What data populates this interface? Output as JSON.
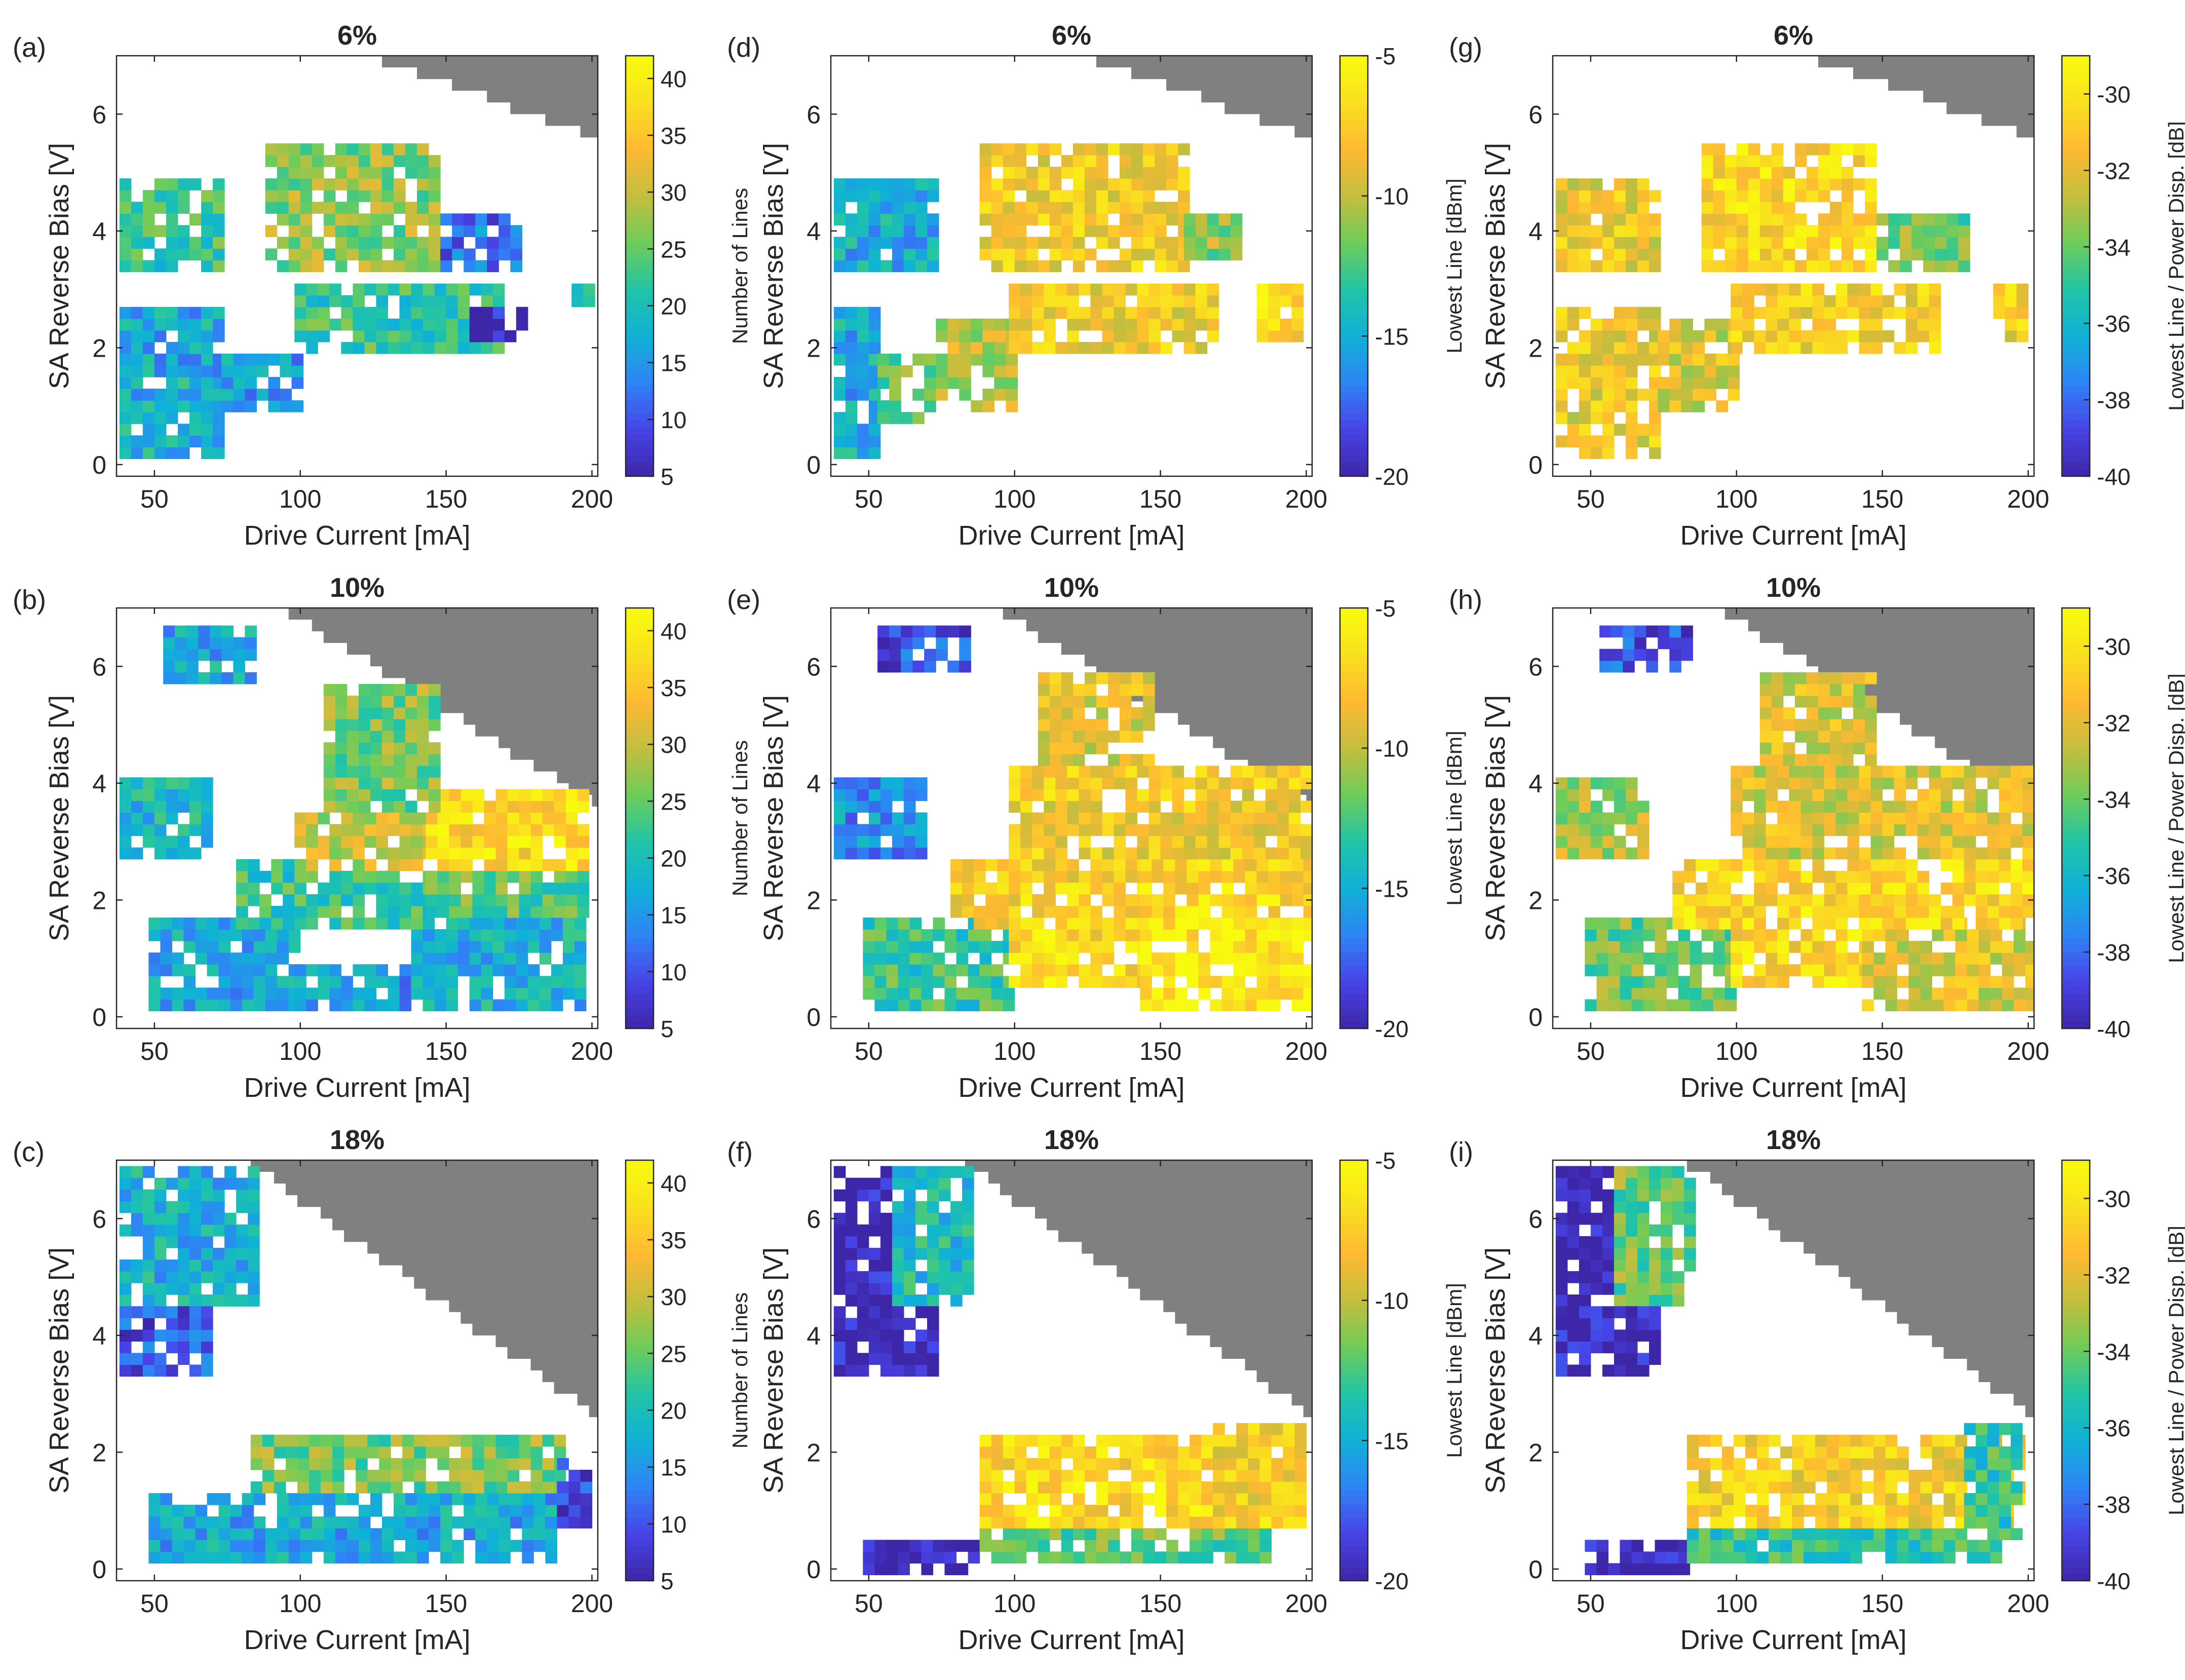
{
  "figure": {
    "xlabel": "Drive Current [mA]",
    "ylabel": "SA Reverse Bias [V]",
    "x_ticks": [
      50,
      100,
      150,
      200
    ],
    "y_ticks": [
      0,
      2,
      4,
      6
    ],
    "xlim": [
      37,
      202
    ],
    "ylim": [
      -0.2,
      7
    ]
  },
  "colormap": [
    "#3e26a8",
    "#4743e6",
    "#2f84f5",
    "#10b1d7",
    "#21c4a6",
    "#6ecc5a",
    "#c3be3e",
    "#feb932",
    "#f9e01f",
    "#f9fb0e"
  ],
  "missing_color": "#808080",
  "columns": [
    {
      "colorbar": {
        "label": "Number of Lines",
        "ticks": [
          5,
          10,
          15,
          20,
          25,
          30,
          35,
          40
        ],
        "range": [
          5,
          42
        ]
      }
    },
    {
      "colorbar": {
        "label": "Lowest Line [dBm]",
        "ticks": [
          -5,
          -10,
          -15,
          -20
        ],
        "range": [
          -20,
          -5
        ]
      }
    },
    {
      "colorbar": {
        "label": "Lowest Line / Power Disp. [dB]",
        "ticks": [
          -30,
          -32,
          -34,
          -36,
          -38,
          -40
        ],
        "range": [
          -40,
          -29
        ]
      }
    }
  ],
  "panels": [
    {
      "letter": "(a)",
      "title": "6%"
    },
    {
      "letter": "(d)",
      "title": "6%"
    },
    {
      "letter": "(g)",
      "title": "6%"
    },
    {
      "letter": "(b)",
      "title": "10%"
    },
    {
      "letter": "(e)",
      "title": "10%"
    },
    {
      "letter": "(h)",
      "title": "10%"
    },
    {
      "letter": "(c)",
      "title": "18%"
    },
    {
      "letter": "(f)",
      "title": "18%"
    },
    {
      "letter": "(i)",
      "title": "18%"
    }
  ],
  "chart_data": [
    {
      "type": "heatmap",
      "panel": "(a)",
      "title": "6%",
      "xlabel": "Drive Current [mA]",
      "ylabel": "SA Reverse Bias [V]",
      "colorbar_label": "Number of Lines",
      "value_range": [
        5,
        42
      ],
      "x_cells": [
        40,
        200,
        4
      ],
      "y_cells": [
        0,
        7,
        0.2
      ],
      "blocks": [
        {
          "x": [
            40,
            75
          ],
          "y": [
            0.2,
            1.6
          ],
          "v": 18
        },
        {
          "x": [
            40,
            75
          ],
          "y": [
            1.6,
            2.8
          ],
          "v": 17
        },
        {
          "x": [
            75,
            100
          ],
          "y": [
            1.0,
            2.0
          ],
          "v": 16
        },
        {
          "x": [
            100,
            170
          ],
          "y": [
            2.0,
            3.2
          ],
          "v": 22
        },
        {
          "x": [
            40,
            75
          ],
          "y": [
            3.4,
            5.0
          ],
          "v": 22
        },
        {
          "x": [
            90,
            150
          ],
          "y": [
            3.4,
            5.6
          ],
          "v": 27
        },
        {
          "x": [
            150,
            175
          ],
          "y": [
            3.4,
            4.4
          ],
          "v": 12
        },
        {
          "x": [
            160,
            180
          ],
          "y": [
            2.2,
            2.8
          ],
          "v": 6
        },
        {
          "x": [
            195,
            200
          ],
          "y": [
            2.8,
            3.2
          ],
          "v": 20
        }
      ]
    },
    {
      "type": "heatmap",
      "panel": "(d)",
      "title": "6%",
      "xlabel": "Drive Current [mA]",
      "ylabel": "SA Reverse Bias [V]",
      "colorbar_label": "Lowest Line [dBm]",
      "value_range": [
        -20,
        -5
      ],
      "x_cells": [
        40,
        200,
        4
      ],
      "y_cells": [
        0,
        7,
        0.2
      ],
      "blocks": [
        {
          "x": [
            40,
            55
          ],
          "y": [
            0.2,
            2.8
          ],
          "v": -15
        },
        {
          "x": [
            55,
            75
          ],
          "y": [
            0.8,
            2.0
          ],
          "v": -12
        },
        {
          "x": [
            75,
            100
          ],
          "y": [
            1.0,
            2.6
          ],
          "v": -10
        },
        {
          "x": [
            100,
            170
          ],
          "y": [
            2.0,
            3.2
          ],
          "v": -8
        },
        {
          "x": [
            40,
            75
          ],
          "y": [
            3.4,
            5.0
          ],
          "v": -15
        },
        {
          "x": [
            90,
            160
          ],
          "y": [
            3.4,
            5.6
          ],
          "v": -8
        },
        {
          "x": [
            160,
            180
          ],
          "y": [
            3.6,
            4.4
          ],
          "v": -11
        },
        {
          "x": [
            185,
            200
          ],
          "y": [
            2.2,
            3.2
          ],
          "v": -7
        }
      ]
    },
    {
      "type": "heatmap",
      "panel": "(g)",
      "title": "6%",
      "xlabel": "Drive Current [mA]",
      "ylabel": "SA Reverse Bias [V]",
      "colorbar_label": "Lowest Line / Power Disp. [dB]",
      "value_range": [
        -40,
        -29
      ],
      "x_cells": [
        40,
        200,
        4
      ],
      "y_cells": [
        0,
        7,
        0.2
      ],
      "blocks": [
        {
          "x": [
            40,
            75
          ],
          "y": [
            0.2,
            2.8
          ],
          "v": -31.5
        },
        {
          "x": [
            75,
            100
          ],
          "y": [
            1.0,
            2.6
          ],
          "v": -32
        },
        {
          "x": [
            100,
            170
          ],
          "y": [
            2.0,
            3.2
          ],
          "v": -31
        },
        {
          "x": [
            40,
            75
          ],
          "y": [
            3.4,
            5.0
          ],
          "v": -31.5
        },
        {
          "x": [
            90,
            150
          ],
          "y": [
            3.4,
            5.6
          ],
          "v": -30.5
        },
        {
          "x": [
            150,
            180
          ],
          "y": [
            3.4,
            4.4
          ],
          "v": -34
        },
        {
          "x": [
            190,
            200
          ],
          "y": [
            2.2,
            3.2
          ],
          "v": -31
        }
      ]
    },
    {
      "type": "heatmap",
      "panel": "(b)",
      "title": "10%",
      "xlabel": "Drive Current [mA]",
      "ylabel": "SA Reverse Bias [V]",
      "colorbar_label": "Number of Lines",
      "value_range": [
        5,
        42
      ],
      "x_cells": [
        40,
        200,
        4
      ],
      "y_cells": [
        0,
        7,
        0.2
      ],
      "blocks": [
        {
          "x": [
            50,
            100
          ],
          "y": [
            0.2,
            1.8
          ],
          "v": 17
        },
        {
          "x": [
            100,
            145
          ],
          "y": [
            0.2,
            1.0
          ],
          "v": 16
        },
        {
          "x": [
            140,
            200
          ],
          "y": [
            0.2,
            1.8
          ],
          "v": 18
        },
        {
          "x": [
            80,
            145
          ],
          "y": [
            1.6,
            2.8
          ],
          "v": 22
        },
        {
          "x": [
            145,
            200
          ],
          "y": [
            1.8,
            2.6
          ],
          "v": 24
        },
        {
          "x": [
            100,
            145
          ],
          "y": [
            2.6,
            3.6
          ],
          "v": 30
        },
        {
          "x": [
            145,
            200
          ],
          "y": [
            2.6,
            4.0
          ],
          "v": 37
        },
        {
          "x": [
            110,
            150
          ],
          "y": [
            3.6,
            5.8
          ],
          "v": 26
        },
        {
          "x": [
            40,
            70
          ],
          "y": [
            2.8,
            4.2
          ],
          "v": 19
        },
        {
          "x": [
            55,
            85
          ],
          "y": [
            5.8,
            6.8
          ],
          "v": 17
        }
      ]
    },
    {
      "type": "heatmap",
      "panel": "(e)",
      "title": "10%",
      "xlabel": "Drive Current [mA]",
      "ylabel": "SA Reverse Bias [V]",
      "colorbar_label": "Lowest Line [dBm]",
      "value_range": [
        -20,
        -5
      ],
      "x_cells": [
        40,
        200,
        4
      ],
      "y_cells": [
        0,
        7,
        0.2
      ],
      "blocks": [
        {
          "x": [
            50,
            100
          ],
          "y": [
            0.2,
            1.8
          ],
          "v": -13
        },
        {
          "x": [
            100,
            145
          ],
          "y": [
            0.6,
            1.6
          ],
          "v": -7
        },
        {
          "x": [
            145,
            205
          ],
          "y": [
            0.2,
            1.8
          ],
          "v": -6
        },
        {
          "x": [
            80,
            145
          ],
          "y": [
            1.6,
            2.8
          ],
          "v": -7.5
        },
        {
          "x": [
            145,
            205
          ],
          "y": [
            1.8,
            2.8
          ],
          "v": -7
        },
        {
          "x": [
            100,
            205
          ],
          "y": [
            2.8,
            4.4
          ],
          "v": -8
        },
        {
          "x": [
            110,
            150
          ],
          "y": [
            4.4,
            6.0
          ],
          "v": -9
        },
        {
          "x": [
            40,
            70
          ],
          "y": [
            2.8,
            4.2
          ],
          "v": -16
        },
        {
          "x": [
            55,
            85
          ],
          "y": [
            6.0,
            6.8
          ],
          "v": -18
        }
      ]
    },
    {
      "type": "heatmap",
      "panel": "(h)",
      "title": "10%",
      "xlabel": "Drive Current [mA]",
      "ylabel": "SA Reverse Bias [V]",
      "colorbar_label": "Lowest Line / Power Disp. [dB]",
      "value_range": [
        -40,
        -29
      ],
      "x_cells": [
        40,
        200,
        4
      ],
      "y_cells": [
        0,
        7,
        0.2
      ],
      "blocks": [
        {
          "x": [
            50,
            100
          ],
          "y": [
            0.2,
            1.8
          ],
          "v": -34
        },
        {
          "x": [
            100,
            145
          ],
          "y": [
            0.6,
            1.6
          ],
          "v": -30.5
        },
        {
          "x": [
            145,
            205
          ],
          "y": [
            0.2,
            1.8
          ],
          "v": -32
        },
        {
          "x": [
            80,
            205
          ],
          "y": [
            1.6,
            2.8
          ],
          "v": -30.5
        },
        {
          "x": [
            100,
            205
          ],
          "y": [
            2.8,
            4.4
          ],
          "v": -32
        },
        {
          "x": [
            110,
            150
          ],
          "y": [
            4.4,
            6.0
          ],
          "v": -32
        },
        {
          "x": [
            40,
            70
          ],
          "y": [
            2.8,
            4.2
          ],
          "v": -33
        },
        {
          "x": [
            55,
            85
          ],
          "y": [
            6.0,
            6.8
          ],
          "v": -38.5
        }
      ]
    },
    {
      "type": "heatmap",
      "panel": "(c)",
      "title": "18%",
      "xlabel": "Drive Current [mA]",
      "ylabel": "SA Reverse Bias [V]",
      "colorbar_label": "Number of Lines",
      "value_range": [
        5,
        42
      ],
      "x_cells": [
        40,
        200,
        4
      ],
      "y_cells": [
        0,
        7,
        0.2
      ],
      "blocks": [
        {
          "x": [
            40,
            85
          ],
          "y": [
            4.6,
            7.0
          ],
          "v": 18
        },
        {
          "x": [
            40,
            70
          ],
          "y": [
            3.4,
            4.6
          ],
          "v": 10
        },
        {
          "x": [
            50,
            190
          ],
          "y": [
            0.2,
            1.4
          ],
          "v": 17
        },
        {
          "x": [
            85,
            190
          ],
          "y": [
            1.4,
            2.4
          ],
          "v": 26
        },
        {
          "x": [
            190,
            200
          ],
          "y": [
            0.8,
            2.0
          ],
          "v": 8
        }
      ]
    },
    {
      "type": "heatmap",
      "panel": "(f)",
      "title": "18%",
      "xlabel": "Drive Current [mA]",
      "ylabel": "SA Reverse Bias [V]",
      "colorbar_label": "Lowest Line [dBm]",
      "value_range": [
        -20,
        -5
      ],
      "x_cells": [
        40,
        200,
        4
      ],
      "y_cells": [
        0,
        7,
        0.2
      ],
      "blocks": [
        {
          "x": [
            40,
            60
          ],
          "y": [
            4.6,
            7.0
          ],
          "v": -20
        },
        {
          "x": [
            60,
            85
          ],
          "y": [
            4.6,
            7.0
          ],
          "v": -14
        },
        {
          "x": [
            40,
            75
          ],
          "y": [
            3.4,
            4.6
          ],
          "v": -20
        },
        {
          "x": [
            50,
            90
          ],
          "y": [
            0.0,
            0.6
          ],
          "v": -20
        },
        {
          "x": [
            90,
            190
          ],
          "y": [
            0.2,
            0.8
          ],
          "v": -12
        },
        {
          "x": [
            90,
            200
          ],
          "y": [
            0.8,
            2.4
          ],
          "v": -7
        },
        {
          "x": [
            170,
            200
          ],
          "y": [
            1.0,
            2.6
          ],
          "v": -8
        }
      ]
    },
    {
      "type": "heatmap",
      "panel": "(i)",
      "title": "18%",
      "xlabel": "Drive Current [mA]",
      "ylabel": "SA Reverse Bias [V]",
      "colorbar_label": "Lowest Line / Power Disp. [dB]",
      "value_range": [
        -40,
        -29
      ],
      "x_cells": [
        40,
        200,
        4
      ],
      "y_cells": [
        0,
        7,
        0.2
      ],
      "blocks": [
        {
          "x": [
            40,
            60
          ],
          "y": [
            4.6,
            7.0
          ],
          "v": -40
        },
        {
          "x": [
            60,
            85
          ],
          "y": [
            4.6,
            7.0
          ],
          "v": -34
        },
        {
          "x": [
            40,
            75
          ],
          "y": [
            3.4,
            4.6
          ],
          "v": -40
        },
        {
          "x": [
            50,
            85
          ],
          "y": [
            0.0,
            0.6
          ],
          "v": -40
        },
        {
          "x": [
            85,
            190
          ],
          "y": [
            0.2,
            0.8
          ],
          "v": -35
        },
        {
          "x": [
            85,
            200
          ],
          "y": [
            0.8,
            2.4
          ],
          "v": -31
        },
        {
          "x": [
            180,
            200
          ],
          "y": [
            0.6,
            2.6
          ],
          "v": -35
        }
      ]
    }
  ]
}
